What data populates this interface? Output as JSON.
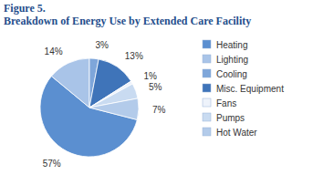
{
  "chart_data": {
    "type": "pie",
    "title": "Figure 5.",
    "subtitle": "Breakdown of Energy Use by Extended Care Facility",
    "categories": [
      "Heating",
      "Lighting",
      "Cooling",
      "Misc. Equipment",
      "Fans",
      "Pumps",
      "Hot Water"
    ],
    "values": [
      57,
      14,
      3,
      13,
      1,
      5,
      7
    ],
    "value_labels": [
      "57%",
      "14%",
      "3%",
      "13%",
      "1%",
      "5%",
      "7%"
    ],
    "colors": [
      "#5b8fd0",
      "#a9c4e8",
      "#7ea6da",
      "#3f74b9",
      "#eef3fb",
      "#c9dbf1",
      "#b3cbea"
    ],
    "data_labels": true,
    "legend": "right"
  }
}
